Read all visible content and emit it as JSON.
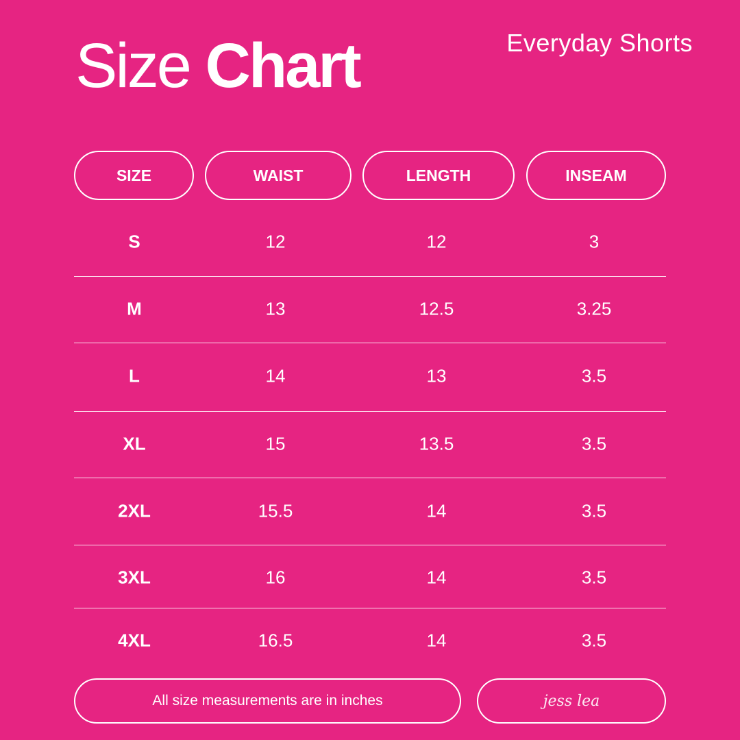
{
  "title": {
    "light": "Size",
    "bold": "Chart"
  },
  "subtitle": "Everyday Shorts",
  "columns": [
    "SIZE",
    "WAIST",
    "LENGTH",
    "INSEAM"
  ],
  "rows": [
    [
      "S",
      "12",
      "12",
      "3"
    ],
    [
      "M",
      "13",
      "12.5",
      "3.25"
    ],
    [
      "L",
      "14",
      "13",
      "3.5"
    ],
    [
      "XL",
      "15",
      "13.5",
      "3.5"
    ],
    [
      "2XL",
      "15.5",
      "14",
      "3.5"
    ],
    [
      "3XL",
      "16",
      "14",
      "3.5"
    ],
    [
      "4XL",
      "16.5",
      "14",
      "3.5"
    ]
  ],
  "footer": {
    "note": "All size measurements are in inches",
    "signature": "jess lea"
  },
  "colors": {
    "background": "#e62482",
    "foreground": "#ffffff"
  }
}
